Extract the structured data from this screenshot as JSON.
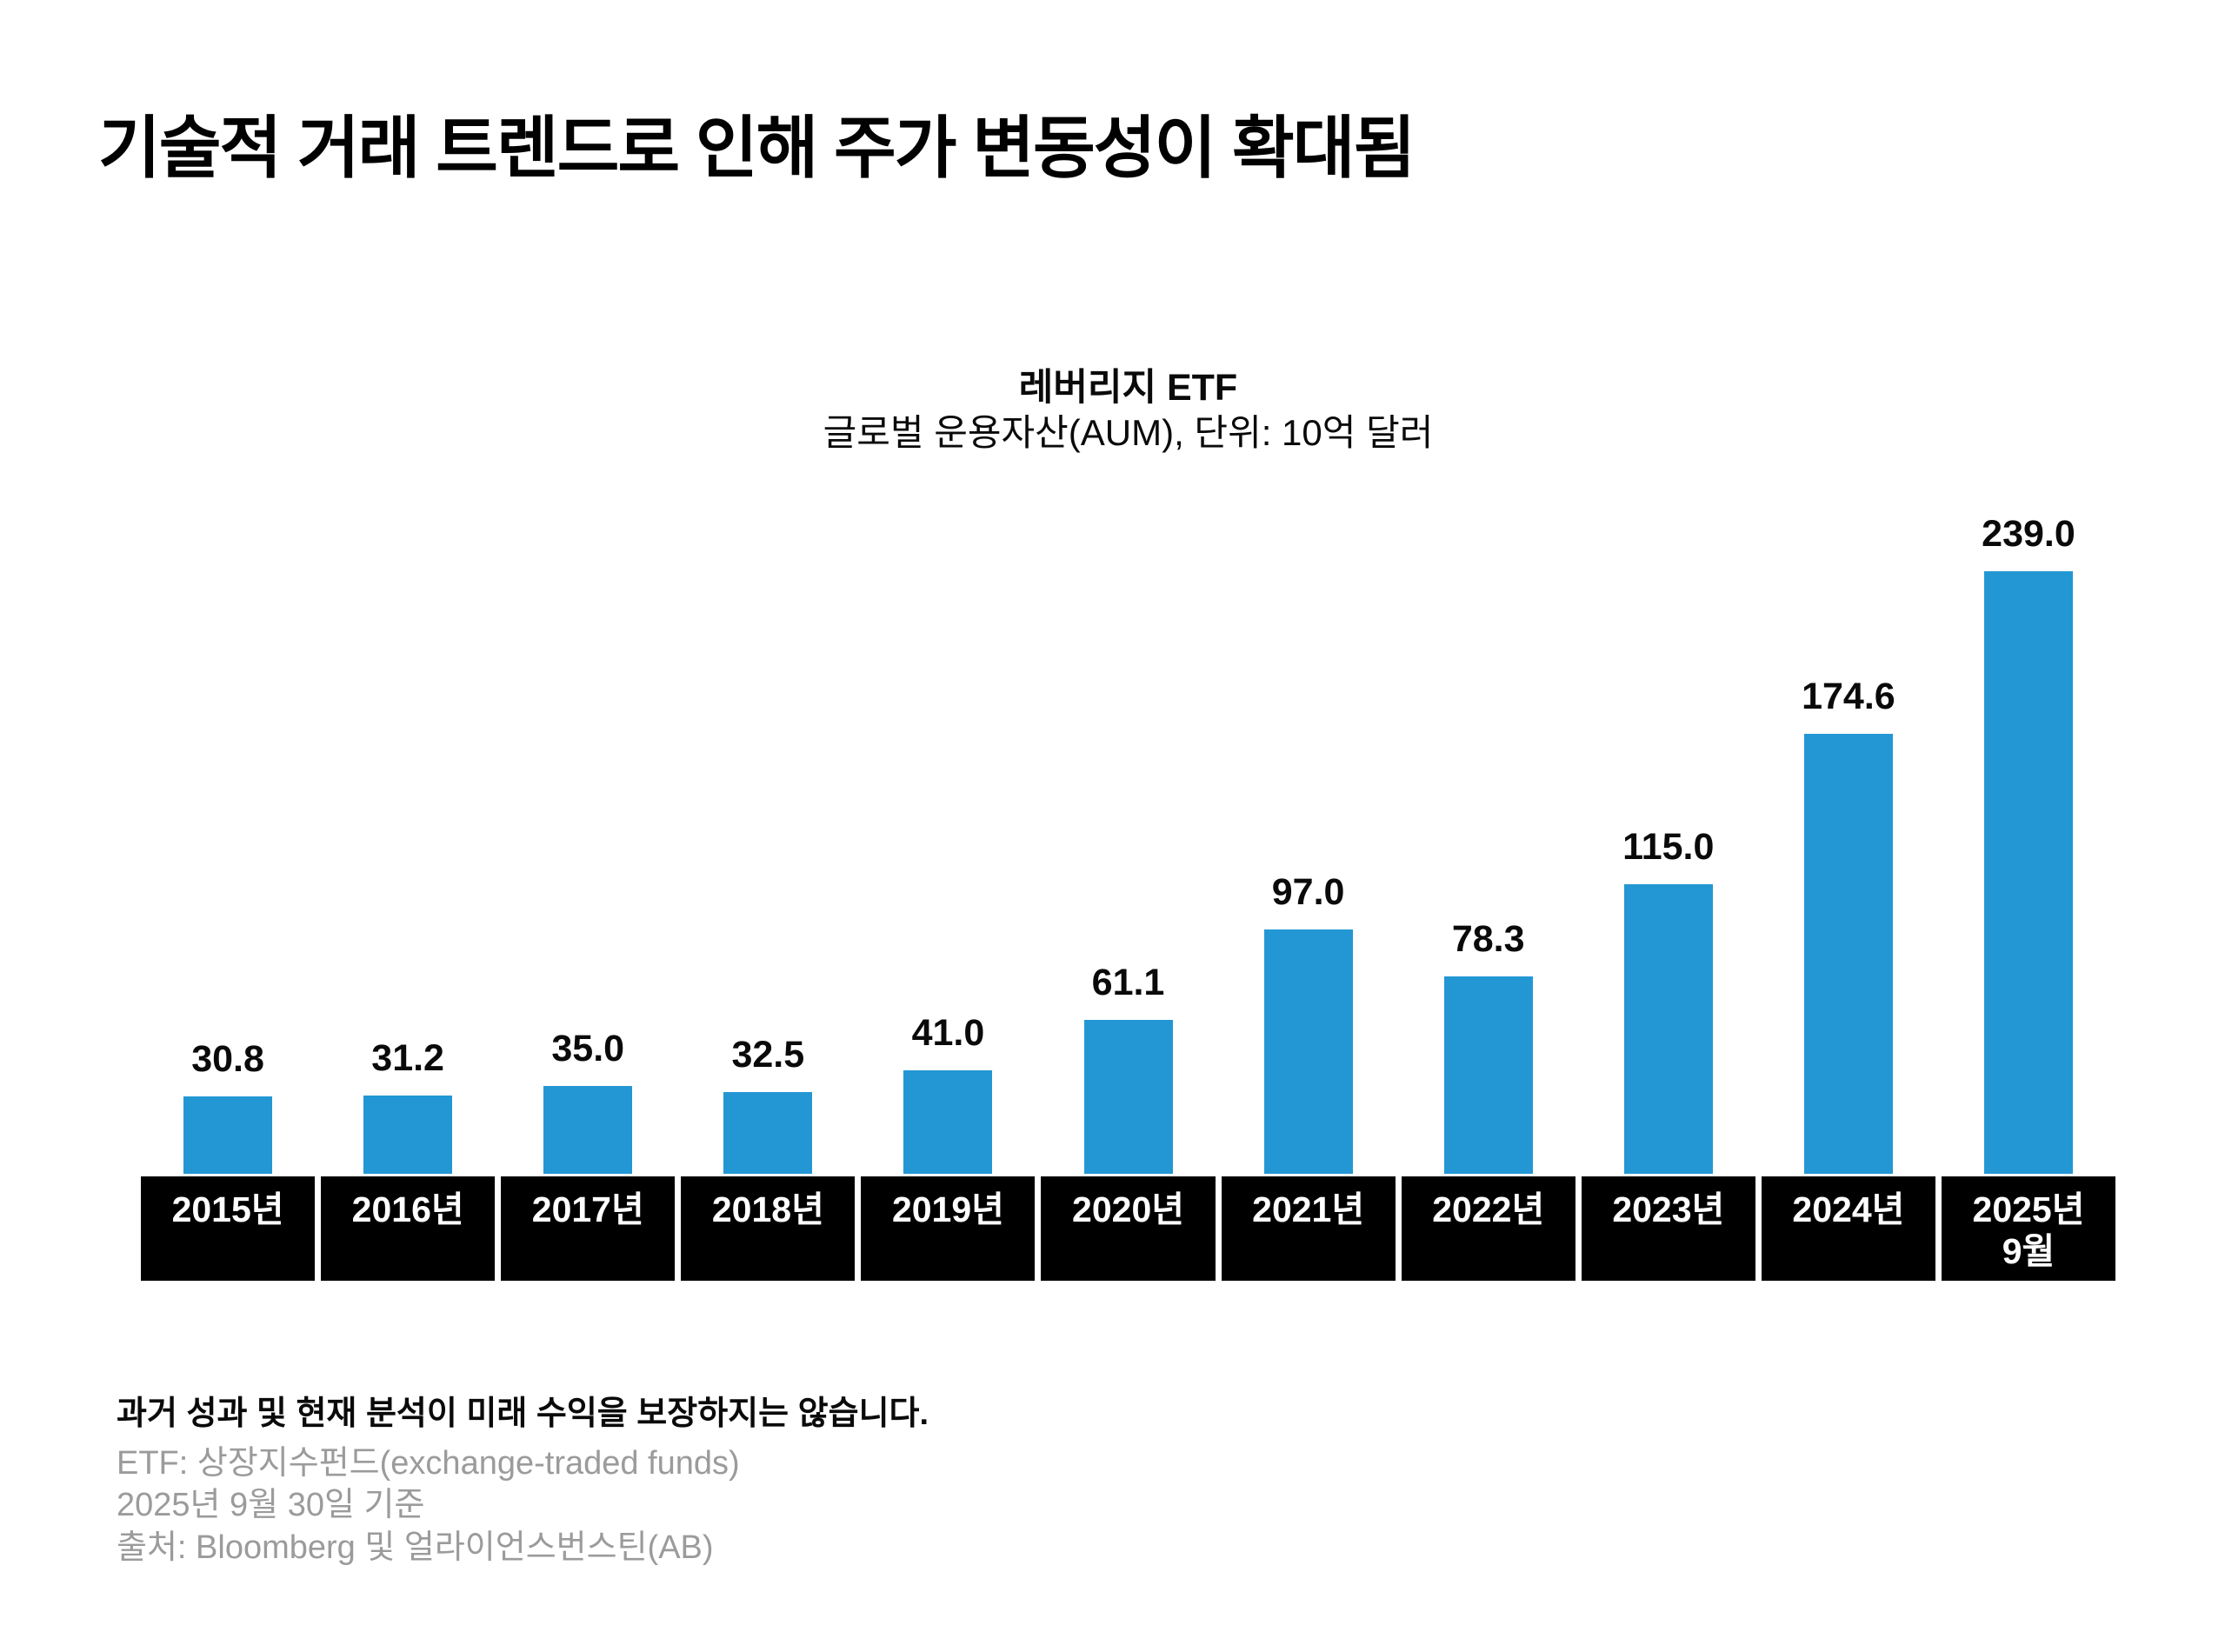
{
  "page": {
    "title": "기술적 거래 트렌드로 인해 주가 변동성이 확대됨"
  },
  "chart_data": {
    "type": "bar",
    "title": "레버리지 ETF",
    "subtitle": "글로벌 운용자산(AUM), 단위: 10억 달러",
    "categories": [
      "2015년",
      "2016년",
      "2017년",
      "2018년",
      "2019년",
      "2020년",
      "2021년",
      "2022년",
      "2023년",
      "2024년",
      "2025년\n9월"
    ],
    "values": [
      30.8,
      31.2,
      35.0,
      32.5,
      41.0,
      61.1,
      97.0,
      78.3,
      115.0,
      174.6,
      239.0
    ],
    "value_label_decimals": 1,
    "bar_color": "#2397d4",
    "axis_box_bg": "#000000",
    "axis_box_text_color": "#ffffff",
    "ylim": [
      0,
      250
    ],
    "grid": false,
    "legend": false,
    "data_labels": true
  },
  "footnotes": {
    "disclaimer": "과거 성과 및 현재 분석이 미래 수익을 보장하지는 않습니다.",
    "definition": "ETF: 상장지수펀드(exchange-traded funds)",
    "as_of": "2025년 9월 30일 기준",
    "source": "출처: Bloomberg 및 얼라이언스번스틴(AB)"
  }
}
